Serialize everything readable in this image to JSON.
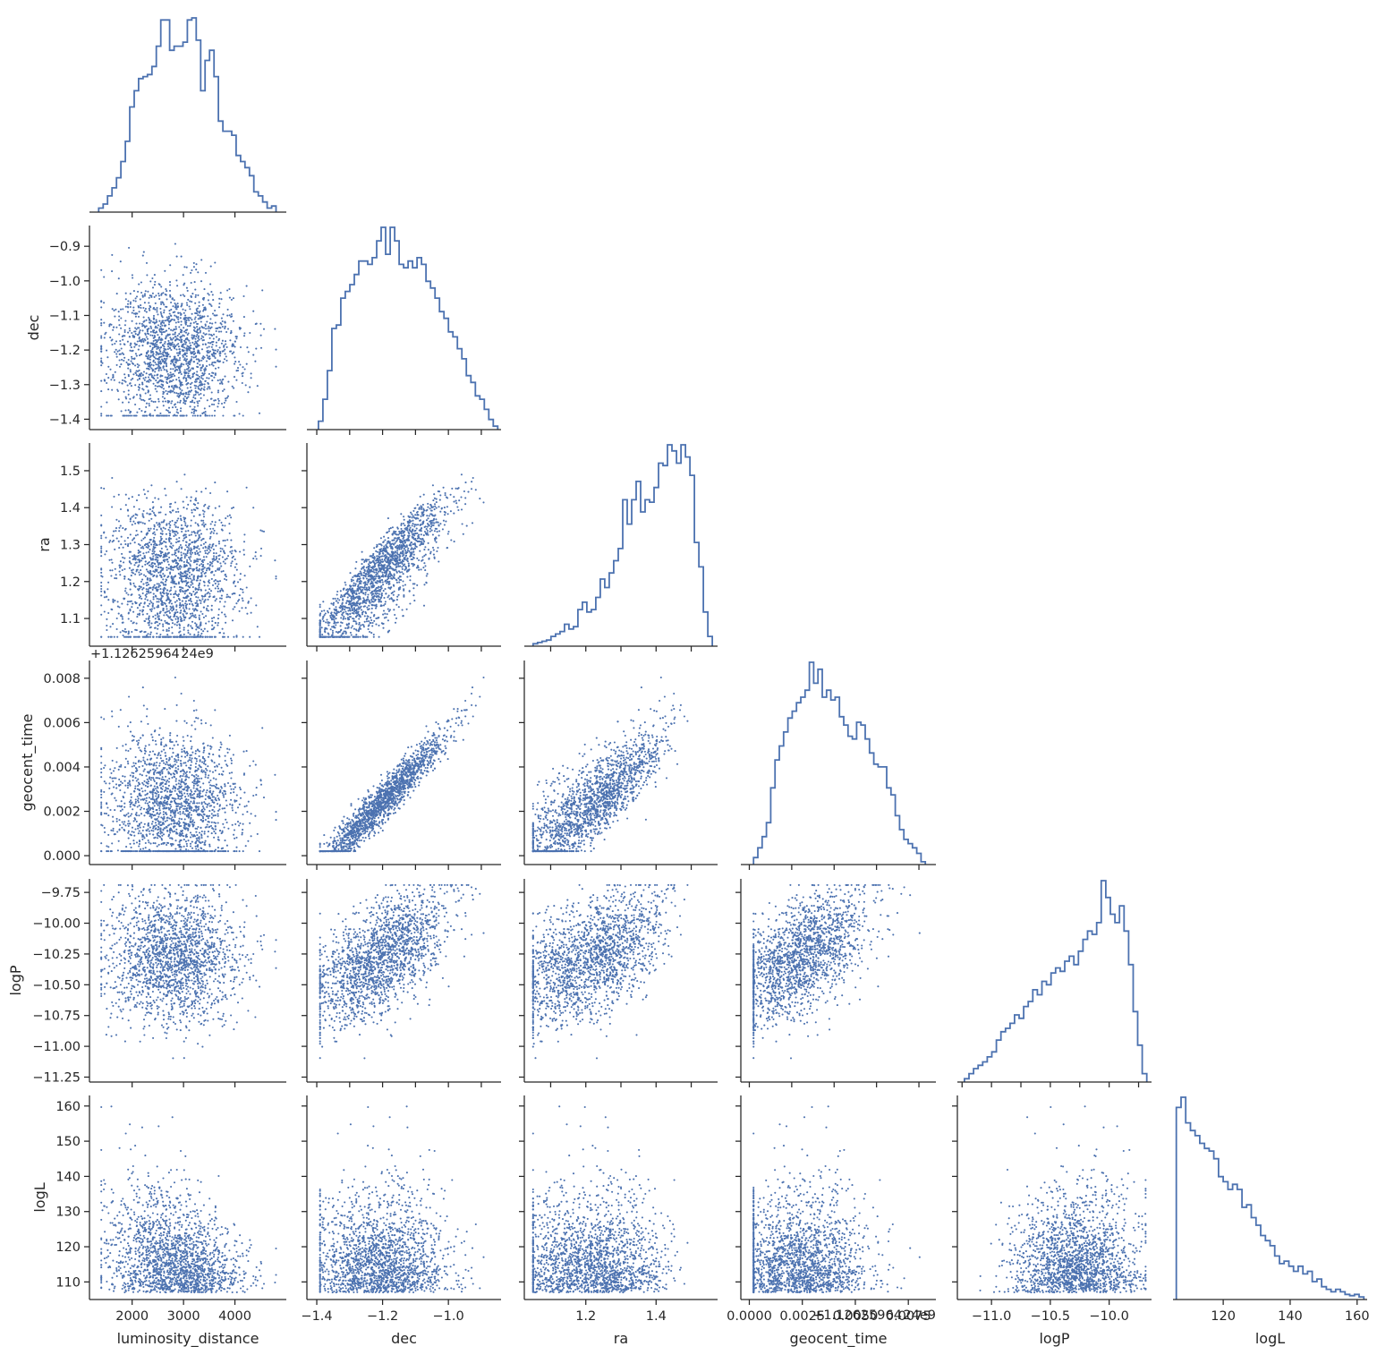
{
  "chart_data": {
    "type": "scatter",
    "layout": "corner-pair-plot",
    "variables": [
      "luminosity_distance",
      "dec",
      "ra",
      "geocent_time",
      "logP",
      "logL"
    ],
    "axis_labels": {
      "luminosity_distance": "luminosity_distance",
      "dec": "dec",
      "ra": "ra",
      "geocent_time": "geocent_time",
      "logP": "logP",
      "logL": "logL"
    },
    "offset_text": "+1.12625964 24e9",
    "ranges": {
      "luminosity_distance": [
        1170,
        5000
      ],
      "dec": [
        -1.43,
        -0.84
      ],
      "ra": [
        1.025,
        1.575
      ],
      "geocent_time": [
        -0.0004,
        0.0088
      ],
      "logP": [
        -11.29,
        -9.64
      ],
      "logL": [
        105,
        163
      ]
    },
    "ticks": {
      "luminosity_distance": [
        {
          "v": 2000,
          "label": "2000"
        },
        {
          "v": 3000,
          "label": "3000"
        },
        {
          "v": 4000,
          "label": "4000"
        }
      ],
      "dec": [
        {
          "v": -1.4,
          "label": "−1.4"
        },
        {
          "v": -1.3,
          "label": "−1.3"
        },
        {
          "v": -1.2,
          "label": "−1.2"
        },
        {
          "v": -1.1,
          "label": "−1.1"
        },
        {
          "v": -1.0,
          "label": "−1.0"
        },
        {
          "v": -0.9,
          "label": "−0.9"
        }
      ],
      "ra": [
        {
          "v": 1.1,
          "label": "1.1"
        },
        {
          "v": 1.2,
          "label": "1.2"
        },
        {
          "v": 1.3,
          "label": "1.3"
        },
        {
          "v": 1.4,
          "label": "1.4"
        },
        {
          "v": 1.5,
          "label": "1.5"
        }
      ],
      "geocent_time": [
        {
          "v": 0.0,
          "label": "0.000"
        },
        {
          "v": 0.002,
          "label": "0.002"
        },
        {
          "v": 0.004,
          "label": "0.004"
        },
        {
          "v": 0.006,
          "label": "0.006"
        },
        {
          "v": 0.008,
          "label": "0.008"
        }
      ],
      "logP": [
        {
          "v": -11.25,
          "label": "−11.25"
        },
        {
          "v": -11.0,
          "label": "−11.00"
        },
        {
          "v": -10.75,
          "label": "−10.75"
        },
        {
          "v": -10.5,
          "label": "−10.50"
        },
        {
          "v": -10.25,
          "label": "−10.25"
        },
        {
          "v": -10.0,
          "label": "−10.00"
        },
        {
          "v": -9.75,
          "label": "−9.75"
        }
      ],
      "logL": [
        {
          "v": 110,
          "label": "110"
        },
        {
          "v": 120,
          "label": "120"
        },
        {
          "v": 130,
          "label": "130"
        },
        {
          "v": 140,
          "label": "140"
        },
        {
          "v": 150,
          "label": "150"
        },
        {
          "v": 160,
          "label": "160"
        }
      ]
    },
    "bottom_ticks": {
      "dec": [
        {
          "v": -1.4,
          "label": "−1.4"
        },
        {
          "v": -1.2,
          "label": "−1.2"
        },
        {
          "v": -1.0,
          "label": "−1.0"
        }
      ],
      "ra": [
        {
          "v": 1.2,
          "label": "1.2"
        },
        {
          "v": 1.4,
          "label": "1.4"
        }
      ],
      "geocent_time": [
        {
          "v": 0.0,
          "label": "0.0000"
        },
        {
          "v": 0.0025,
          "label": "0.0025"
        },
        {
          "v": 0.005,
          "label": "0.0050"
        },
        {
          "v": 0.0075,
          "label": "0.0075"
        }
      ],
      "logP": [
        {
          "v": -11.0,
          "label": "−11.0"
        },
        {
          "v": -10.5,
          "label": "−10.5"
        },
        {
          "v": -10.0,
          "label": "−10.0"
        }
      ],
      "logL": [
        {
          "v": 120,
          "label": "120"
        },
        {
          "v": 140,
          "label": "140"
        },
        {
          "v": 160,
          "label": "160"
        }
      ]
    },
    "histograms": {
      "bins": 40,
      "style": "step",
      "luminosity_distance": {
        "range": [
          1350,
          4800
        ],
        "counts": [
          2,
          4,
          8,
          12,
          17,
          25,
          35,
          52,
          60,
          66,
          67,
          68,
          72,
          82,
          95,
          95,
          80,
          82,
          82,
          84,
          95,
          96,
          85,
          60,
          75,
          80,
          67,
          45,
          40,
          40,
          38,
          28,
          25,
          22,
          18,
          10,
          8,
          5,
          2,
          3
        ]
      },
      "dec": {
        "range": [
          -1.395,
          -0.85
        ],
        "counts": [
          5,
          18,
          35,
          60,
          62,
          78,
          82,
          86,
          92,
          100,
          100,
          98,
          102,
          112,
          120,
          104,
          120,
          112,
          98,
          96,
          100,
          96,
          102,
          98,
          88,
          84,
          78,
          70,
          66,
          58,
          55,
          48,
          42,
          32,
          28,
          20,
          18,
          12,
          6,
          2
        ]
      },
      "ra": {
        "range": [
          1.05,
          1.56
        ],
        "counts": [
          2,
          3,
          4,
          5,
          8,
          10,
          12,
          18,
          14,
          16,
          30,
          36,
          28,
          30,
          40,
          55,
          48,
          60,
          70,
          80,
          120,
          100,
          120,
          135,
          110,
          120,
          118,
          130,
          150,
          148,
          165,
          160,
          150,
          165,
          155,
          140,
          85,
          65,
          28,
          8
        ]
      },
      "geocent_time": {
        "range": [
          0.0002,
          0.0083
        ],
        "counts": [
          5,
          12,
          20,
          30,
          55,
          75,
          85,
          95,
          105,
          110,
          116,
          120,
          125,
          145,
          130,
          140,
          120,
          125,
          118,
          120,
          106,
          100,
          92,
          90,
          102,
          100,
          90,
          80,
          72,
          70,
          70,
          55,
          50,
          35,
          25,
          18,
          15,
          12,
          8,
          2
        ]
      },
      "logP": {
        "range": [
          -11.23,
          -9.68
        ],
        "counts": [
          2,
          5,
          8,
          10,
          12,
          15,
          18,
          25,
          30,
          32,
          35,
          40,
          38,
          45,
          48,
          55,
          52,
          60,
          58,
          65,
          68,
          66,
          72,
          75,
          70,
          78,
          85,
          90,
          88,
          95,
          120,
          110,
          100,
          95,
          105,
          90,
          70,
          42,
          22,
          5
        ]
      },
      "logL": {
        "range": [
          106,
          162
        ],
        "counts": [
          150,
          158,
          138,
          132,
          128,
          122,
          118,
          116,
          110,
          96,
          92,
          86,
          90,
          86,
          72,
          74,
          64,
          58,
          50,
          46,
          42,
          34,
          28,
          30,
          26,
          22,
          26,
          20,
          22,
          14,
          16,
          10,
          8,
          6,
          8,
          6,
          4,
          3,
          4,
          2
        ]
      }
    },
    "scatter": {
      "points_per_panel": 1800,
      "marker_size": 2,
      "color": "#4c72b0",
      "note": "posterior samples drawn as scatter in every lower-triangle cell"
    },
    "colors": {
      "series": "#4c72b0",
      "axis": "#262626",
      "background": "#ffffff"
    },
    "grid": false,
    "legend": "none"
  }
}
